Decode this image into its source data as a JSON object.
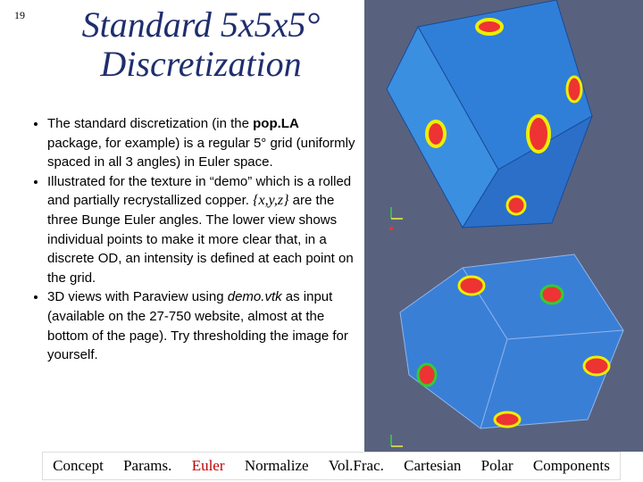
{
  "slide_number": "19",
  "title": [
    "Standard 5x5x5°",
    "Discretization"
  ],
  "bullets": [
    [
      "The standard discretization (in the ",
      "pop.LA",
      " package, for example) is a regular 5° grid (uniformly spaced in all 3 angles) in Euler space."
    ],
    [
      "Illustrated for the texture in “demo” which is a rolled and partially recrystallized copper. ",
      "{x,y,z}",
      " are the three Bunge Euler angles.  The lower view shows individual points to make it more clear that, in a discrete OD, an intensity is defined at each point on the grid."
    ],
    [
      "3D views with Paraview using ",
      "demo.vtk",
      " as input (available on the 27-750 website, almost at the bottom of the page). Try thresholding the image for yourself."
    ]
  ],
  "nav": [
    "Concept",
    "Params.",
    "Euler",
    "Normalize",
    "Vol.Frac.",
    "Cartesian",
    "Polar",
    "Components"
  ]
}
